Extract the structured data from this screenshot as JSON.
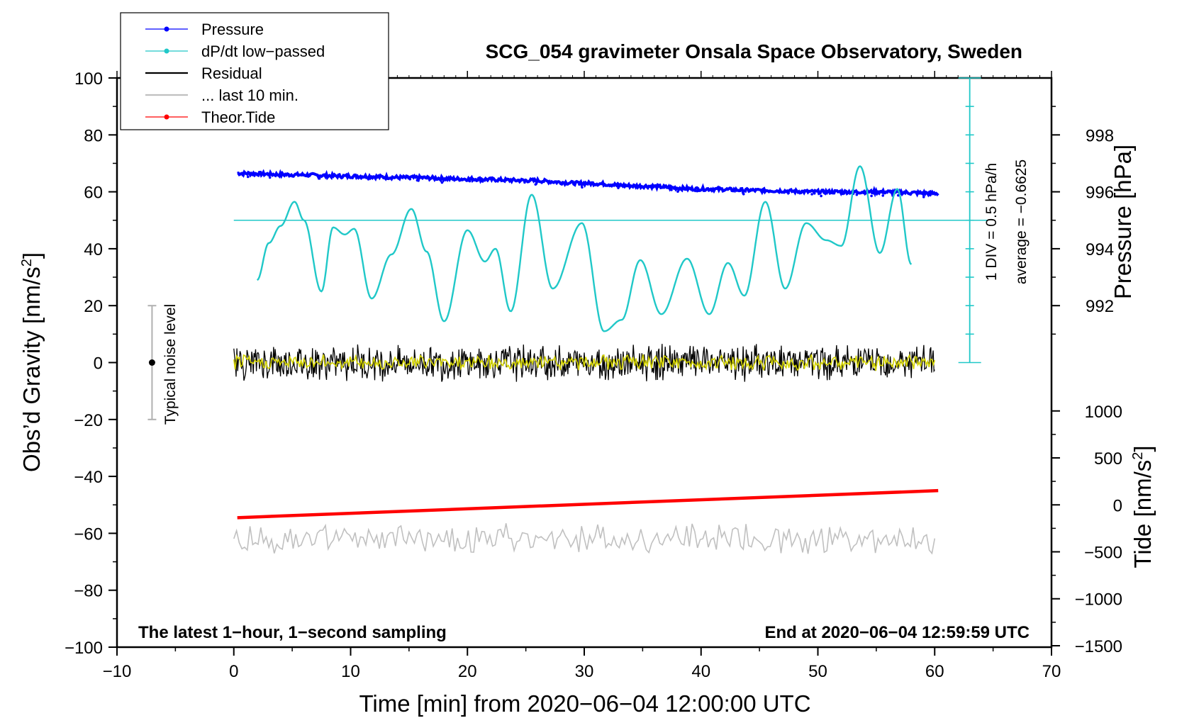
{
  "chart_data": {
    "type": "line",
    "title": "SCG_054 gravimeter Onsala Space Observatory, Sweden",
    "xlabel": "Time [min] from 2020−06−04 12:00:00 UTC",
    "xlim": [
      -10,
      70
    ],
    "x_ticks": [
      -10,
      0,
      10,
      20,
      30,
      40,
      50,
      60,
      70
    ],
    "x_tick_labels": [
      "−10",
      "0",
      "10",
      "20",
      "30",
      "40",
      "50",
      "60",
      "70"
    ],
    "ylabel": "Obs’d Gravity [nm/s",
    "ylabel_sup": "2",
    "ylabel_close": "]",
    "ylim": [
      -100,
      100
    ],
    "y_ticks": [
      -100,
      -80,
      -60,
      -40,
      -20,
      0,
      20,
      40,
      60,
      80,
      100
    ],
    "y_tick_labels": [
      "−100",
      "−80",
      "−60",
      "−40",
      "−20",
      "0",
      "20",
      "40",
      "60",
      "80",
      "100"
    ],
    "y2_pressure": {
      "label": "Pressure [hPa]",
      "ticks": [
        992,
        994,
        996,
        998
      ],
      "tick_labels": [
        "992",
        "994",
        "996",
        "998"
      ],
      "reference": {
        "hpa": 996,
        "gravity": 60
      },
      "hpa_per_gravity_unit": 0.1
    },
    "y2_tide": {
      "label": "Tide [nm/s",
      "label_sup": "2",
      "label_close": "]",
      "ticks": [
        -1500,
        -1000,
        -500,
        0,
        500,
        1000
      ],
      "tick_labels": [
        "−1500",
        "−1000",
        "−500",
        "0",
        "500",
        "1000"
      ],
      "gravity_at_zero": -50,
      "gravity_at_1000": -17
    },
    "dpdt_scale": {
      "label": "1 DIV = 0.5 hPa/h",
      "average_label": "average = −0.6625",
      "axis_x": 63,
      "axis_range": [
        0,
        100
      ],
      "tick_step": 10,
      "average_line_y": 50
    },
    "noise_bar": {
      "label": "Typical noise level",
      "x": -7,
      "center": 0,
      "range": [
        -20,
        20
      ]
    },
    "bottom_left_note": "The latest 1−hour, 1−second sampling",
    "bottom_right_note": "End at 2020−06−04 12:59:59 UTC",
    "legend": [
      {
        "label": "Pressure",
        "color": "#0000ff",
        "marker": true
      },
      {
        "label": "dP/dt low−passed",
        "color": "#20c8c8",
        "marker": true
      },
      {
        "label": "Residual",
        "color": "#000000",
        "marker": false
      },
      {
        "label": "... last 10 min.",
        "color": "#c0c0c0",
        "marker": false
      },
      {
        "label": "Theor.Tide",
        "color": "#ff0000",
        "marker": true
      }
    ],
    "series": [
      {
        "name": "Pressure",
        "color": "#0000ff",
        "style": "dots",
        "x": [
          0.3,
          5,
          10,
          15,
          20,
          25,
          30,
          35,
          40,
          45,
          50,
          55,
          60.3
        ],
        "y": [
          66.5,
          66,
          65.5,
          65,
          64.5,
          64,
          63,
          62,
          61,
          60.5,
          60,
          60,
          59.5
        ],
        "noise_amplitude": 0.6
      },
      {
        "name": "dP/dt low−passed",
        "color": "#20c8c8",
        "style": "line",
        "x": [
          2,
          3,
          4,
          5.2,
          6,
          7.5,
          8.5,
          9.5,
          10.3,
          11.8,
          13.5,
          15.2,
          16.5,
          18,
          20,
          21.5,
          22.4,
          23.7,
          25.5,
          27.3,
          29.8,
          31.7,
          33.2,
          34.8,
          36.6,
          38.8,
          40.7,
          42.3,
          43.7,
          45.5,
          47.2,
          49,
          50.7,
          52,
          53.6,
          55.3,
          56.8,
          58
        ],
        "y": [
          29,
          42,
          48,
          56.5,
          50,
          25,
          47.5,
          45,
          47,
          22.5,
          38,
          54,
          39,
          14.5,
          46.5,
          35.5,
          40,
          18,
          59,
          26,
          49,
          11,
          15,
          36,
          17,
          36.5,
          17,
          35,
          23.5,
          56.5,
          26,
          49,
          43,
          41,
          69,
          38.5,
          61,
          34.5
        ]
      },
      {
        "name": "Residual",
        "color": "#000000",
        "style": "noise",
        "x_range": [
          0,
          60
        ],
        "mean": 0,
        "amplitude": 7
      },
      {
        "name": "Residual smoothed",
        "color": "#d4d400",
        "style": "noise",
        "x_range": [
          0,
          60
        ],
        "mean": 0,
        "amplitude": 3
      },
      {
        "name": "Theor.Tide",
        "color": "#ff0000",
        "style": "line",
        "x": [
          0.3,
          60.3
        ],
        "y": [
          -54.5,
          -45
        ]
      },
      {
        "name": "... last 10 min.",
        "color": "#c0c0c0",
        "style": "noise",
        "x_range": [
          0,
          60
        ],
        "mean": -62,
        "amplitude": 6
      }
    ]
  }
}
